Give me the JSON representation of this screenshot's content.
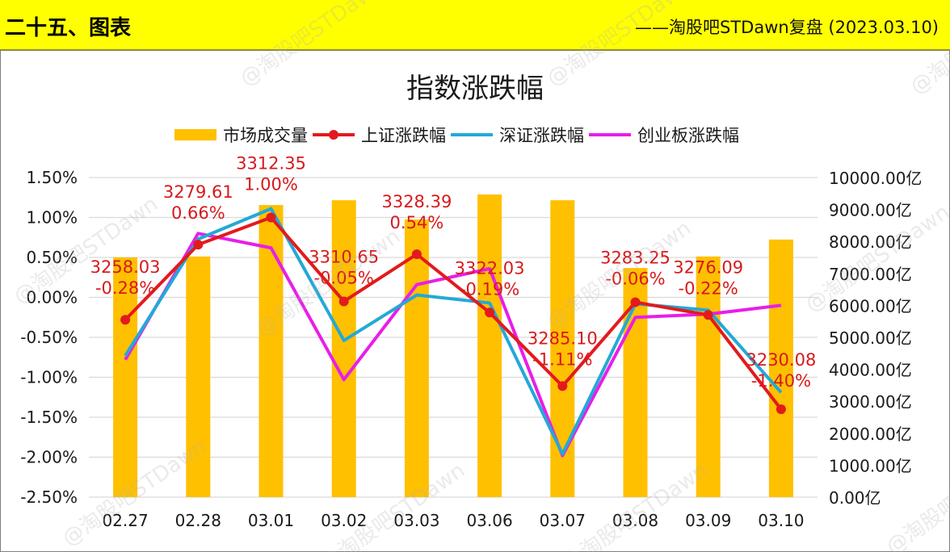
{
  "header": {
    "title": "二十五、图表",
    "source": "——淘股吧STDawn复盘 (2023.03.10)"
  },
  "watermark": "@淘股吧STDawn",
  "chart_data": {
    "type": "bar+line",
    "title": "指数涨跌幅",
    "categories": [
      "02.27",
      "02.28",
      "03.01",
      "03.02",
      "03.03",
      "03.06",
      "03.07",
      "03.08",
      "03.09",
      "03.10"
    ],
    "legend_position": "top",
    "grid": true,
    "y_left": {
      "label": "",
      "range": [
        -2.5,
        1.5
      ],
      "ticks": [
        "1.50%",
        "1.00%",
        "0.50%",
        "0.00%",
        "-0.50%",
        "-1.00%",
        "-1.50%",
        "-2.00%",
        "-2.50%"
      ]
    },
    "y_right": {
      "label": "",
      "range": [
        0,
        10000
      ],
      "ticks": [
        "10000.00亿",
        "9000.00亿",
        "8000.00亿",
        "7000.00亿",
        "6000.00亿",
        "5000.00亿",
        "4000.00亿",
        "3000.00亿",
        "2000.00亿",
        "1000.00亿",
        "0.00亿"
      ]
    },
    "series": [
      {
        "name": "市场成交量",
        "type": "bar",
        "axis": "right",
        "color": "#ffc000",
        "unit": "亿",
        "values": [
          7500,
          7530,
          9140,
          9290,
          8690,
          9470,
          9290,
          7170,
          7530,
          8060
        ]
      },
      {
        "name": "上证涨跌幅",
        "type": "line",
        "axis": "left",
        "color": "#e31a1c",
        "marker": true,
        "unit": "%",
        "values": [
          -0.28,
          0.66,
          1.0,
          -0.05,
          0.54,
          -0.19,
          -1.11,
          -0.06,
          -0.22,
          -1.4
        ],
        "index_close": [
          "3258.03",
          "3279.61",
          "3312.35",
          "3310.65",
          "3328.39",
          "3322.03",
          "3285.10",
          "3283.25",
          "3276.09",
          "3230.08"
        ],
        "labels_pct": [
          "-0.28%",
          "0.66%",
          "1.00%",
          "-0.05%",
          "0.54%",
          "-0.19%",
          "-1.11%",
          "-0.06%",
          "-0.22%",
          "-1.40%"
        ]
      },
      {
        "name": "深证涨跌幅",
        "type": "line",
        "axis": "left",
        "color": "#23a9d6",
        "unit": "%",
        "values": [
          -0.73,
          0.73,
          1.11,
          -0.54,
          0.03,
          -0.07,
          -1.96,
          -0.08,
          -0.16,
          -1.19
        ]
      },
      {
        "name": "创业板涨跌幅",
        "type": "line",
        "axis": "left",
        "color": "#e81ee8",
        "unit": "%",
        "values": [
          -0.78,
          0.8,
          0.62,
          -1.03,
          0.16,
          0.36,
          -1.98,
          -0.25,
          -0.21,
          -0.1
        ]
      }
    ]
  }
}
